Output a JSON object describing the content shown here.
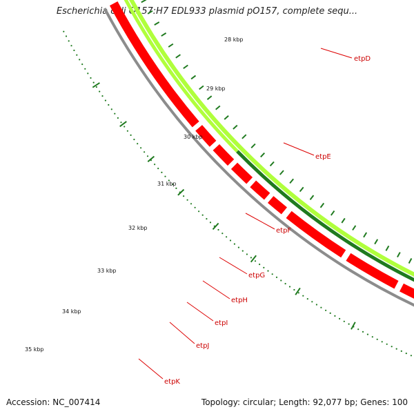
{
  "header": {
    "title": "Escherichia coli O157:H7 EDL933 plasmid pO157, complete sequ..."
  },
  "footer": {
    "accession": "Accession: NC_007414",
    "summary": "Topology: circular; Length: 92,077 bp; Genes: 100"
  },
  "map": {
    "kbp_labels": [
      "28 kbp",
      "29 kbp",
      "30 kbp",
      "31 kbp",
      "32 kbp",
      "33 kbp",
      "34 kbp",
      "35 kbp"
    ],
    "gene_labels": [
      "etpD",
      "etpE",
      "etpF",
      "etpG",
      "etpH",
      "etpI",
      "etpJ",
      "etpK"
    ],
    "colors": {
      "backbone": "#8c8c8c",
      "forward_cds": "#ff0000",
      "gc_dark": "#1f7a1f",
      "gc_light": "#b0ff3c",
      "ticks": "#1f7a1f",
      "label_lines": "#dd0000"
    }
  }
}
